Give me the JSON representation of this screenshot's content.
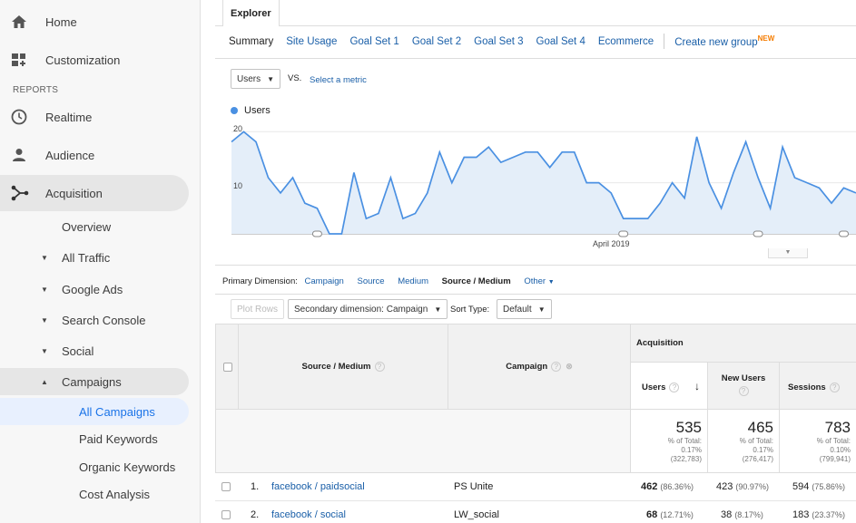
{
  "sidebar": {
    "home": "Home",
    "customization": "Customization",
    "reports_heading": "REPORTS",
    "realtime": "Realtime",
    "audience": "Audience",
    "acquisition": "Acquisition",
    "overview": "Overview",
    "all_traffic": "All Traffic",
    "google_ads": "Google Ads",
    "search_console": "Search Console",
    "social": "Social",
    "campaigns": "Campaigns",
    "all_campaigns": "All Campaigns",
    "paid_keywords": "Paid Keywords",
    "organic_keywords": "Organic Keywords",
    "cost_analysis": "Cost Analysis",
    "icons": {
      "home": "home-icon",
      "customization": "dashboard-plus-icon",
      "realtime": "clock-icon",
      "audience": "person-icon",
      "acquisition": "acquisition-branch-icon"
    }
  },
  "explorer": {
    "tab": "Explorer",
    "subtabs": {
      "summary": "Summary",
      "site_usage": "Site Usage",
      "goal1": "Goal Set 1",
      "goal2": "Goal Set 2",
      "goal3": "Goal Set 3",
      "goal4": "Goal Set 4",
      "ecommerce": "Ecommerce",
      "create_group": "Create new group",
      "new_badge": "NEW"
    },
    "metric_select": "Users",
    "vs": "VS.",
    "select_metric": "Select a metric"
  },
  "chart_data": {
    "type": "area",
    "legend": "Users",
    "y_ticks": [
      "20",
      "10"
    ],
    "ylim": [
      0,
      22
    ],
    "x_label": "April 2019",
    "values": [
      18,
      20,
      18,
      11,
      8,
      11,
      6,
      5,
      0,
      0,
      12,
      3,
      4,
      11,
      3,
      4,
      8,
      16,
      10,
      15,
      15,
      17,
      14,
      15,
      16,
      16,
      13,
      16,
      16,
      10,
      10,
      8,
      3,
      3,
      3,
      6,
      10,
      7,
      19,
      10,
      5,
      12,
      18,
      11,
      5,
      17,
      11,
      10,
      9,
      6,
      9,
      8
    ],
    "color": "#4a90e2"
  },
  "dimension": {
    "label": "Primary Dimension:",
    "campaign": "Campaign",
    "source": "Source",
    "medium": "Medium",
    "source_medium": "Source / Medium",
    "other": "Other"
  },
  "controls": {
    "plot_rows": "Plot Rows",
    "secondary": "Secondary dimension: Campaign",
    "sort_type": "Sort Type:",
    "sort_value": "Default"
  },
  "table": {
    "acquisition": "Acquisition",
    "source_medium": "Source / Medium",
    "campaign": "Campaign",
    "users": "Users",
    "new_users": "New Users",
    "sessions": "Sessions",
    "totals": {
      "users": "535",
      "users_pct": "% of Total:",
      "users_pct2": "0.17%",
      "users_total": "(322,783)",
      "new_users": "465",
      "new_pct": "% of Total:",
      "new_pct2": "0.17%",
      "new_total": "(276,417)",
      "sessions": "783",
      "sess_pct": "% of Total:",
      "sess_pct2": "0.10%",
      "sess_total": "(799,941)"
    },
    "rows": [
      {
        "num": "1.",
        "source": "facebook / paidsocial",
        "campaign": "PS Unite",
        "users": "462",
        "users_pct": "(86.36%)",
        "new_users": "423",
        "new_pct": "(90.97%)",
        "sessions": "594",
        "sess_pct": "(75.86%)"
      },
      {
        "num": "2.",
        "source": "facebook / social",
        "campaign": "LW_social",
        "users": "68",
        "users_pct": "(12.71%)",
        "new_users": "38",
        "new_pct": "(8.17%)",
        "sessions": "183",
        "sess_pct": "(23.37%)"
      }
    ]
  }
}
